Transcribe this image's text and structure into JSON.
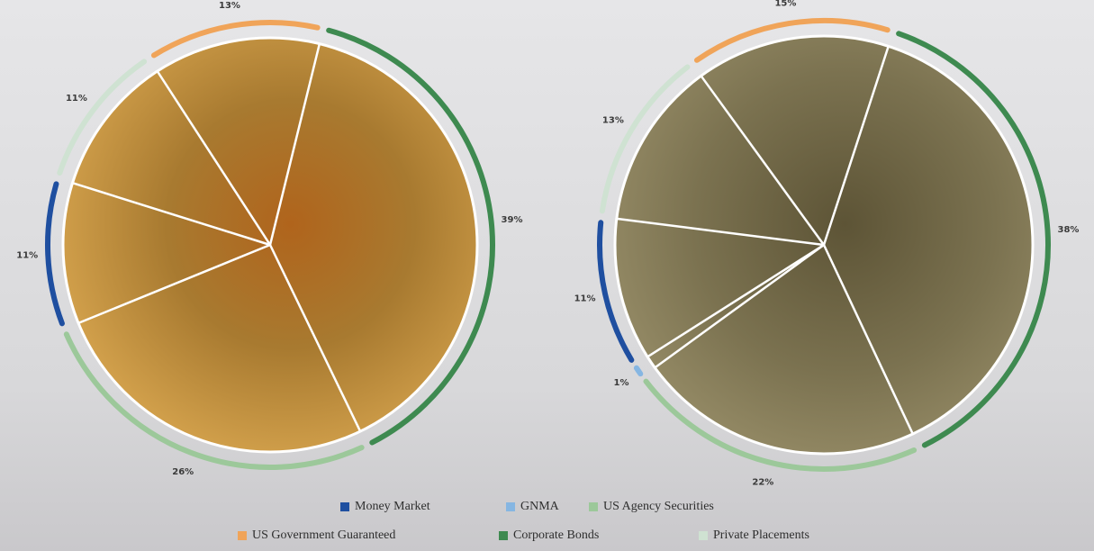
{
  "legend": [
    {
      "name": "Money Market",
      "color": "#1f4fa0"
    },
    {
      "name": "GNMA",
      "color": "#86b6e2"
    },
    {
      "name": "US Agency Securities",
      "color": "#9cc89a"
    },
    {
      "name": "US Government Guaranteed",
      "color": "#f0a459"
    },
    {
      "name": "Corporate Bonds",
      "color": "#3e8a50"
    },
    {
      "name": "Private Placements",
      "color": "#cfe2d2"
    }
  ],
  "chart_data": [
    {
      "type": "pie",
      "values": [
        13,
        39,
        26,
        11,
        11
      ],
      "value_labels": [
        "13%",
        "39%",
        "26%",
        "11%",
        "11%"
      ],
      "colors": [
        "#f0a459",
        "#3e8a50",
        "#9cc89a",
        "#1f4fa0",
        "#cfe2d2"
      ]
    },
    {
      "type": "pie",
      "values": [
        15,
        38,
        22,
        1,
        11,
        13
      ],
      "value_labels": [
        "15%",
        "38%",
        "22%",
        "1%",
        "11%",
        "13%"
      ],
      "colors": [
        "#f0a459",
        "#3e8a50",
        "#9cc89a",
        "#86b6e2",
        "#1f4fa0",
        "#cfe2d2"
      ]
    }
  ]
}
